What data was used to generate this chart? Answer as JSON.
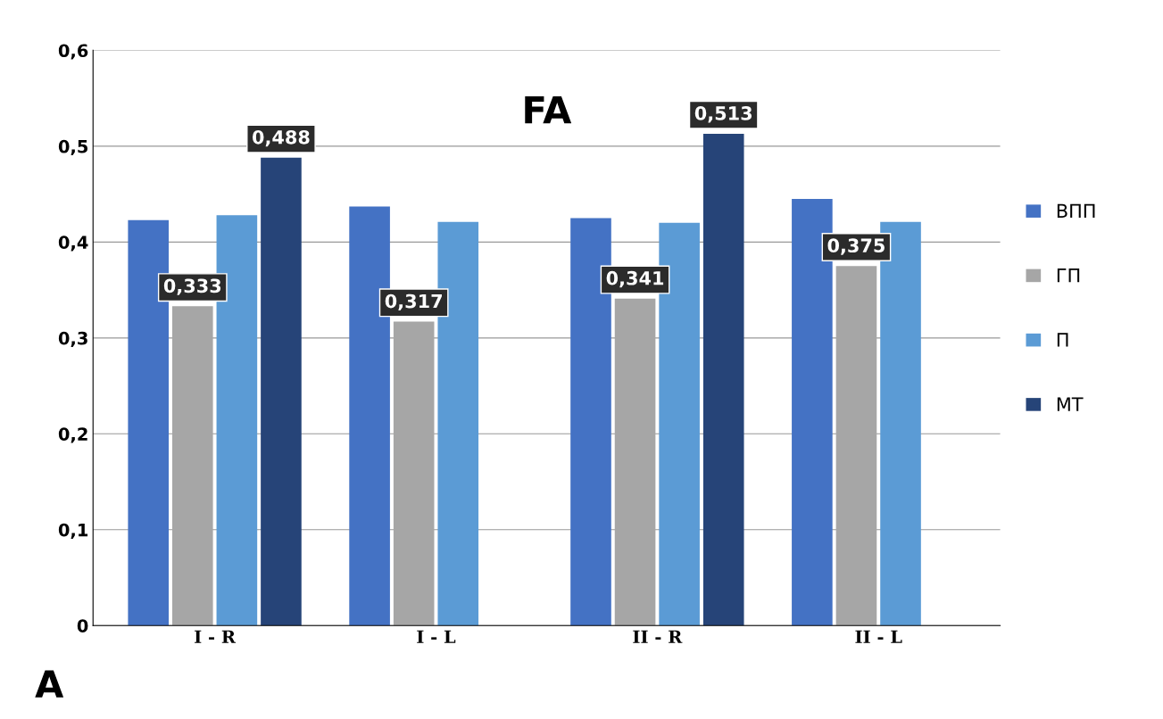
{
  "chart_data": {
    "type": "bar",
    "title": "FA",
    "categories": [
      "I - R",
      "I - L",
      "II - R",
      "II - L"
    ],
    "series": [
      {
        "name": "ВПП",
        "color": "#4472c4",
        "values": [
          0.423,
          0.437,
          0.425,
          0.445
        ]
      },
      {
        "name": "ГП",
        "color": "#a6a6a6",
        "values": [
          0.333,
          0.317,
          0.341,
          0.375
        ],
        "value_labels": [
          "0,333",
          "0,317",
          "0,341",
          "0,375"
        ]
      },
      {
        "name": "П",
        "color": "#5b9bd5",
        "values": [
          0.428,
          0.421,
          0.42,
          0.421
        ]
      },
      {
        "name": "МТ",
        "color": "#264478",
        "values": [
          0.488,
          null,
          0.513,
          null
        ],
        "value_labels": [
          "0,488",
          null,
          "0,513",
          null
        ]
      }
    ],
    "ylim": [
      0,
      0.6
    ],
    "yticks": [
      {
        "value": 0,
        "label": "0"
      },
      {
        "value": 0.1,
        "label": "0,1"
      },
      {
        "value": 0.2,
        "label": "0,2"
      },
      {
        "value": 0.3,
        "label": "0,3"
      },
      {
        "value": 0.4,
        "label": "0,4"
      },
      {
        "value": 0.5,
        "label": "0,5"
      },
      {
        "value": 0.6,
        "label": "0,6"
      }
    ],
    "grid": "y",
    "legend": "right",
    "annotations": [
      "A"
    ]
  }
}
